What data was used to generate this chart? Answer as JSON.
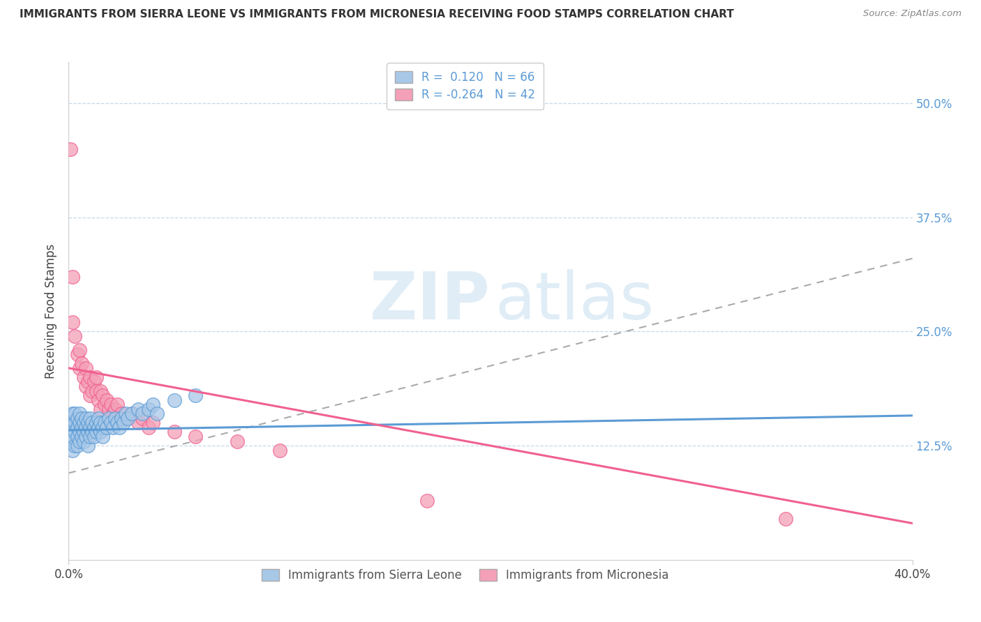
{
  "title": "IMMIGRANTS FROM SIERRA LEONE VS IMMIGRANTS FROM MICRONESIA RECEIVING FOOD STAMPS CORRELATION CHART",
  "source": "Source: ZipAtlas.com",
  "ylabel": "Receiving Food Stamps",
  "legend_label_blue": "Immigrants from Sierra Leone",
  "legend_label_pink": "Immigrants from Micronesia",
  "r_blue": "0.120",
  "n_blue": "66",
  "r_pink": "-0.264",
  "n_pink": "42",
  "color_blue": "#a8c8e8",
  "color_pink": "#f4a0b8",
  "color_blue_dark": "#5b9bd5",
  "color_pink_dark": "#f06090",
  "color_trend_gray": "#aaaaaa",
  "ytick_labels": [
    "12.5%",
    "25.0%",
    "37.5%",
    "50.0%"
  ],
  "ytick_values": [
    0.125,
    0.25,
    0.375,
    0.5
  ],
  "xlim": [
    0.0,
    0.4
  ],
  "ylim": [
    0.0,
    0.545
  ],
  "blue_points_x": [
    0.001,
    0.001,
    0.001,
    0.002,
    0.002,
    0.002,
    0.002,
    0.003,
    0.003,
    0.003,
    0.003,
    0.004,
    0.004,
    0.004,
    0.004,
    0.005,
    0.005,
    0.005,
    0.005,
    0.006,
    0.006,
    0.006,
    0.007,
    0.007,
    0.007,
    0.008,
    0.008,
    0.008,
    0.009,
    0.009,
    0.009,
    0.01,
    0.01,
    0.01,
    0.011,
    0.011,
    0.012,
    0.012,
    0.013,
    0.013,
    0.014,
    0.014,
    0.015,
    0.015,
    0.016,
    0.016,
    0.017,
    0.018,
    0.019,
    0.02,
    0.021,
    0.022,
    0.023,
    0.024,
    0.025,
    0.026,
    0.027,
    0.028,
    0.03,
    0.033,
    0.035,
    0.038,
    0.04,
    0.042,
    0.05,
    0.06
  ],
  "blue_points_y": [
    0.14,
    0.155,
    0.13,
    0.145,
    0.16,
    0.135,
    0.12,
    0.15,
    0.14,
    0.16,
    0.125,
    0.145,
    0.135,
    0.155,
    0.125,
    0.14,
    0.15,
    0.13,
    0.16,
    0.145,
    0.135,
    0.155,
    0.14,
    0.15,
    0.13,
    0.145,
    0.155,
    0.135,
    0.14,
    0.15,
    0.125,
    0.145,
    0.135,
    0.155,
    0.14,
    0.15,
    0.145,
    0.135,
    0.15,
    0.14,
    0.145,
    0.155,
    0.14,
    0.15,
    0.145,
    0.135,
    0.15,
    0.145,
    0.155,
    0.15,
    0.145,
    0.155,
    0.15,
    0.145,
    0.155,
    0.15,
    0.16,
    0.155,
    0.16,
    0.165,
    0.16,
    0.165,
    0.17,
    0.16,
    0.175,
    0.18
  ],
  "pink_points_x": [
    0.001,
    0.002,
    0.002,
    0.003,
    0.004,
    0.005,
    0.005,
    0.006,
    0.007,
    0.008,
    0.008,
    0.009,
    0.01,
    0.01,
    0.011,
    0.012,
    0.013,
    0.013,
    0.014,
    0.015,
    0.015,
    0.016,
    0.017,
    0.018,
    0.019,
    0.02,
    0.021,
    0.022,
    0.023,
    0.025,
    0.027,
    0.03,
    0.033,
    0.035,
    0.038,
    0.04,
    0.05,
    0.06,
    0.08,
    0.1,
    0.17,
    0.34
  ],
  "pink_points_y": [
    0.45,
    0.31,
    0.26,
    0.245,
    0.225,
    0.23,
    0.21,
    0.215,
    0.2,
    0.21,
    0.19,
    0.195,
    0.18,
    0.2,
    0.185,
    0.195,
    0.185,
    0.2,
    0.175,
    0.185,
    0.165,
    0.18,
    0.17,
    0.175,
    0.165,
    0.17,
    0.16,
    0.165,
    0.17,
    0.16,
    0.155,
    0.16,
    0.15,
    0.155,
    0.145,
    0.15,
    0.14,
    0.135,
    0.13,
    0.12,
    0.065,
    0.045
  ],
  "blue_trend_x": [
    0.0,
    0.4
  ],
  "blue_trend_y": [
    0.142,
    0.158
  ],
  "pink_trend_x": [
    0.0,
    0.4
  ],
  "pink_trend_y": [
    0.21,
    0.04
  ],
  "gray_trend_x": [
    0.0,
    0.4
  ],
  "gray_trend_y": [
    0.095,
    0.33
  ],
  "watermark_zip": "ZIP",
  "watermark_atlas": "atlas",
  "background_color": "#ffffff"
}
